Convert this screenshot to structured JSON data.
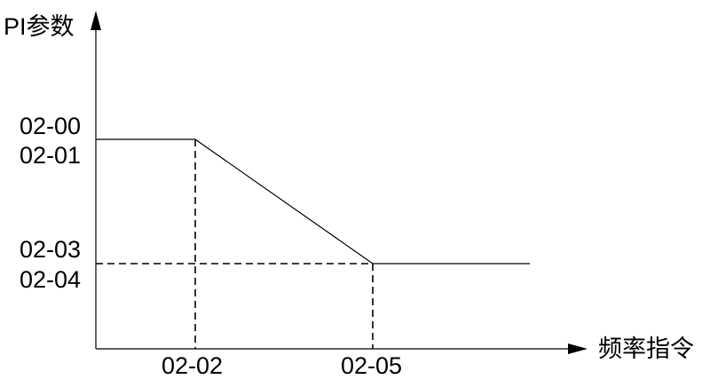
{
  "axes": {
    "y_title": "PI参数",
    "x_title": "频率指令"
  },
  "y_labels": {
    "high": [
      "02-00",
      "02-01"
    ],
    "low": [
      "02-03",
      "02-04"
    ]
  },
  "x_labels": [
    "02-02",
    "02-05"
  ],
  "colors": {
    "line": "#000000",
    "background": "#ffffff"
  }
}
